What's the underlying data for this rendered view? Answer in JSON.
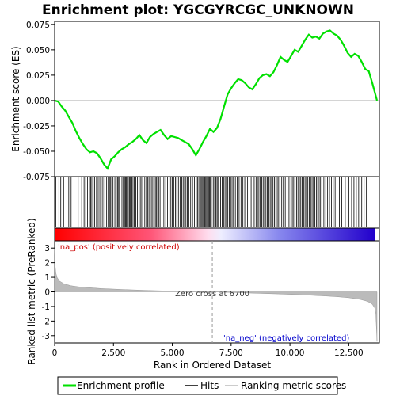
{
  "chart_data": {
    "type": "line",
    "title": "Enrichment plot: YGCGYRCGC_UNKNOWN",
    "top_panel": {
      "ylabel": "Enrichment score (ES)",
      "ylim": [
        -0.075,
        0.078
      ],
      "yticks": [
        -0.075,
        -0.05,
        -0.025,
        0.0,
        0.025,
        0.05,
        0.075
      ],
      "ytick_labels": [
        "-0.075",
        "-0.050",
        "-0.025",
        "0.000",
        "0.025",
        "0.050",
        "0.075"
      ],
      "series": [
        {
          "name": "Enrichment profile",
          "color": "#00e000",
          "x": [
            0,
            150,
            300,
            450,
            600,
            750,
            900,
            1050,
            1200,
            1350,
            1500,
            1650,
            1800,
            1950,
            2100,
            2250,
            2400,
            2550,
            2700,
            2850,
            3000,
            3150,
            3300,
            3450,
            3600,
            3750,
            3900,
            4050,
            4200,
            4350,
            4500,
            4650,
            4800,
            4950,
            5100,
            5250,
            5400,
            5550,
            5700,
            5850,
            6000,
            6150,
            6300,
            6450,
            6600,
            6750,
            6900,
            7050,
            7200,
            7350,
            7500,
            7650,
            7800,
            7950,
            8100,
            8250,
            8400,
            8550,
            8700,
            8850,
            9000,
            9150,
            9300,
            9450,
            9600,
            9750,
            9900,
            10050,
            10200,
            10350,
            10500,
            10650,
            10800,
            10950,
            11100,
            11250,
            11400,
            11550,
            11700,
            11850,
            12000,
            12150,
            12300,
            12450,
            12600,
            12750,
            12900,
            13050,
            13200,
            13350,
            13500,
            13700
          ],
          "y": [
            0.0,
            -0.001,
            -0.006,
            -0.01,
            -0.016,
            -0.022,
            -0.03,
            -0.037,
            -0.043,
            -0.048,
            -0.051,
            -0.05,
            -0.052,
            -0.057,
            -0.063,
            -0.067,
            -0.058,
            -0.055,
            -0.051,
            -0.048,
            -0.046,
            -0.043,
            -0.041,
            -0.038,
            -0.034,
            -0.039,
            -0.042,
            -0.036,
            -0.033,
            -0.031,
            -0.029,
            -0.034,
            -0.038,
            -0.035,
            -0.036,
            -0.037,
            -0.039,
            -0.041,
            -0.043,
            -0.048,
            -0.054,
            -0.048,
            -0.041,
            -0.035,
            -0.028,
            -0.031,
            -0.027,
            -0.018,
            -0.006,
            0.006,
            0.012,
            0.017,
            0.021,
            0.02,
            0.017,
            0.013,
            0.011,
            0.016,
            0.022,
            0.025,
            0.026,
            0.024,
            0.028,
            0.035,
            0.043,
            0.04,
            0.038,
            0.044,
            0.05,
            0.048,
            0.054,
            0.06,
            0.065,
            0.062,
            0.063,
            0.061,
            0.066,
            0.068,
            0.069,
            0.066,
            0.064,
            0.06,
            0.054,
            0.047,
            0.043,
            0.046,
            0.044,
            0.038,
            0.031,
            0.029,
            0.017,
            0.0
          ]
        }
      ]
    },
    "hits_panel": {
      "hits": [
        50,
        180,
        260,
        380,
        600,
        700,
        1000,
        1150,
        1250,
        1320,
        1400,
        1480,
        1530,
        1580,
        1640,
        1700,
        1780,
        1850,
        1920,
        1980,
        2050,
        2130,
        2210,
        2280,
        2330,
        2380,
        2430,
        2480,
        2560,
        2620,
        2680,
        2720,
        2760,
        2860,
        2920,
        2970,
        3010,
        3050,
        3090,
        3130,
        3180,
        3220,
        3280,
        3330,
        3380,
        3450,
        3520,
        3580,
        3640,
        3700,
        3830,
        3900,
        3960,
        4010,
        4060,
        4110,
        4170,
        4230,
        4280,
        4330,
        4380,
        4420,
        4480,
        4560,
        4640,
        4720,
        4800,
        4870,
        4940,
        5000,
        5060,
        5130,
        5190,
        5260,
        5330,
        5400,
        5460,
        5520,
        5580,
        5640,
        5700,
        5780,
        5860,
        5940,
        6020,
        6080,
        6130,
        6180,
        6220,
        6260,
        6300,
        6340,
        6380,
        6420,
        6460,
        6500,
        6540,
        6580,
        6620,
        6660,
        6740,
        6800,
        6850,
        6900,
        6940,
        6980,
        7050,
        7120,
        7180,
        7240,
        7300,
        7360,
        7420,
        7480,
        7540,
        7600,
        7680,
        7760,
        7840,
        7920,
        8000,
        8080,
        8200,
        8350,
        8480,
        8560,
        8620,
        8680,
        8740,
        8800,
        8860,
        8920,
        8980,
        9040,
        9100,
        9160,
        9220,
        9280,
        9340,
        9400,
        9460,
        9520,
        9580,
        9650,
        9720,
        9800,
        9880,
        9960,
        10040,
        10100,
        10160,
        10220,
        10280,
        10340,
        10400,
        10460,
        10520,
        10580,
        10640,
        10700,
        10760,
        10820,
        10880,
        10940,
        11000,
        11060,
        11120,
        11180,
        11240,
        11300,
        11360,
        11440,
        11520,
        11600,
        11680,
        11760,
        11840,
        11920,
        12000,
        12100,
        12200,
        12350,
        12500,
        12620,
        12720,
        12820,
        12920,
        13050,
        13150,
        13250
      ]
    },
    "ranking_panel": {
      "ylabel": "Ranked list metric (PreRanked)",
      "ylim": [
        -3.5,
        3.5
      ],
      "yticks": [
        -3,
        -2,
        -1,
        0,
        1,
        2,
        3
      ],
      "ytick_labels": [
        "-3",
        "-2",
        "-1",
        "0",
        "1",
        "2",
        "3"
      ],
      "xlabel": "Rank in Ordered Dataset",
      "xlim": [
        0,
        13800
      ],
      "xticks": [
        0,
        2500,
        5000,
        7500,
        10000,
        12500
      ],
      "xtick_labels": [
        "0",
        "2,500",
        "5,000",
        "7,500",
        "10,000",
        "12,500"
      ],
      "metric_x": [
        0,
        20,
        50,
        100,
        200,
        400,
        700,
        1000,
        1500,
        2000,
        3000,
        4000,
        5000,
        6000,
        6700,
        7500,
        8500,
        9500,
        10500,
        11500,
        12000,
        12500,
        13000,
        13300,
        13500,
        13600,
        13650,
        13700
      ],
      "metric_y": [
        3.0,
        1.8,
        1.3,
        1.0,
        0.75,
        0.55,
        0.42,
        0.35,
        0.28,
        0.22,
        0.15,
        0.09,
        0.05,
        0.02,
        0.0,
        -0.04,
        -0.09,
        -0.14,
        -0.2,
        -0.28,
        -0.33,
        -0.4,
        -0.52,
        -0.65,
        -0.85,
        -1.1,
        -1.5,
        -3.4
      ],
      "zero_cross": 6700,
      "zero_cross_label": "Zero cross at 6700",
      "pos_label": "'na_pos' (positively correlated)",
      "neg_label": "'na_neg' (negatively correlated)",
      "pos_color": "#cc0000",
      "neg_color": "#0000cc"
    },
    "legend": {
      "placement": "bottom",
      "entries": [
        {
          "label": "Enrichment profile",
          "color": "#00e000"
        },
        {
          "label": "Hits",
          "color": "#000000"
        },
        {
          "label": "Ranking metric scores",
          "color": "#bbbbbb"
        }
      ]
    }
  }
}
